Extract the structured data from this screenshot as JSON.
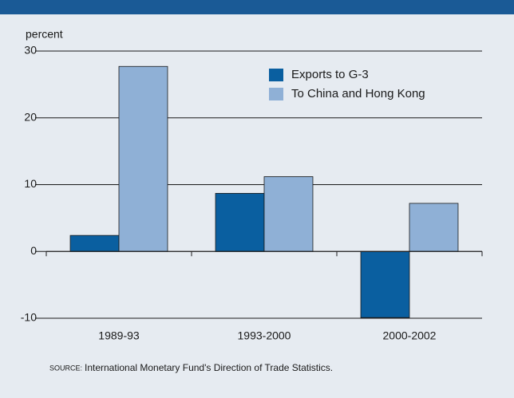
{
  "chart_data": {
    "type": "bar",
    "ylabel": "percent",
    "categories": [
      "1989-93",
      "1993-2000",
      "2000-2002"
    ],
    "series": [
      {
        "name": "Exports to G-3",
        "color": "#0a5fa0",
        "values": [
          2.4,
          8.7,
          -9.9
        ]
      },
      {
        "name": "To China and Hong Kong",
        "color": "#8fb0d6",
        "values": [
          27.7,
          11.2,
          7.2
        ]
      }
    ],
    "ylim": [
      -10,
      30
    ],
    "yticks": [
      -10,
      0,
      10,
      20,
      30
    ],
    "grid": true,
    "legend": "upper right",
    "source_label": "SOURCE:",
    "source": "International Monetary Fund's Direction of Trade Statistics."
  }
}
